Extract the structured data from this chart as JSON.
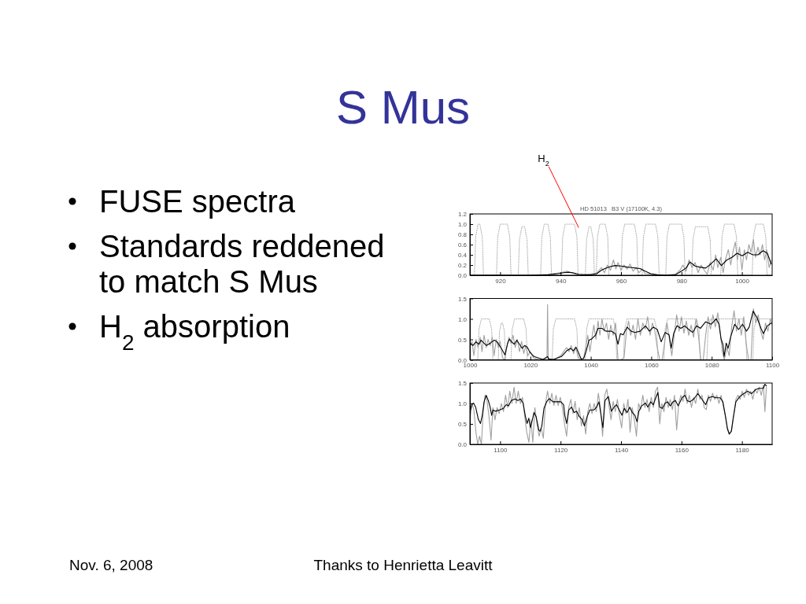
{
  "chart_data": [
    {
      "type": "other",
      "title": "S Mus",
      "annotations": [
        "FUSE spectra",
        "Standards reddened to match S Mus",
        "H$_{2}$ absorption",
        "Nov. 6, 2008",
        "Thanks to Henrietta Leavitt"
      ]
    },
    {
      "type": "line",
      "title": "HD 51013   B3 V (17100K, 4.3)",
      "xlim": [
        910,
        1010
      ],
      "ylim": [
        0,
        1.2
      ],
      "xticks": [
        920,
        940,
        960,
        980,
        1000
      ],
      "yticks": [
        {
          "value": 0,
          "label": "0.0"
        },
        {
          "value": 0.2,
          "label": "0.2"
        },
        {
          "value": 0.4,
          "label": "0.4"
        },
        {
          "value": 0.6,
          "label": "0.6"
        },
        {
          "value": 0.8,
          "label": "0.8"
        },
        {
          "value": 1,
          "label": "1.0"
        },
        {
          "value": 1.2,
          "label": "1.2"
        }
      ],
      "annotations": [
        {
          "text": "H$_{2}$",
          "x": 946,
          "y": 0.93
        }
      ],
      "series": [
        {
          "color": "#b4b4b4",
          "line_style": "dotted",
          "x": [
            910,
            911.5,
            911.9,
            912.7,
            913.3,
            914.1,
            914.5,
            918.8,
            919.2,
            920,
            922.4,
            923.2,
            923.6,
            926,
            926.4,
            927.2,
            928.1,
            928.9,
            929.3,
            933.4,
            933.8,
            934.6,
            935.8,
            936.6,
            937,
            940.3,
            940.7,
            941.5,
            944.6,
            945.4,
            945.8,
            948.2,
            948.6,
            949.4,
            950,
            950.8,
            951.2,
            951.8,
            952.2,
            953,
            954.8,
            955.6,
            956,
            960,
            960.4,
            961.2,
            964.4,
            965.2,
            965.6,
            967,
            967.4,
            968.2,
            971.4,
            972.2,
            972.6,
            974.8,
            975.2,
            976,
            980,
            980.8,
            981.2,
            983.4,
            983.8,
            984.6,
            988.7,
            989.5,
            989.9,
            993,
            993.4,
            994.2,
            997.4,
            998.2,
            998.6,
            1003.4,
            1003.8,
            1004.6,
            1007.1,
            1007.9,
            1008.3,
            1010
          ],
          "values": [
            0,
            0,
            0.75,
            1,
            1,
            0.75,
            0,
            0,
            0.75,
            1,
            1,
            0.75,
            0,
            0,
            0.7,
            0.95,
            0.95,
            0.7,
            0,
            0,
            0.75,
            1,
            1,
            0.75,
            0,
            0,
            0.75,
            1,
            1,
            0.75,
            0,
            0,
            0.7,
            0.95,
            0.95,
            0.7,
            0,
            0,
            0.75,
            1,
            1,
            0.75,
            0,
            0,
            0.75,
            1,
            1,
            0.75,
            0,
            0,
            0.75,
            1,
            1,
            0.75,
            0,
            0,
            0.75,
            1,
            1,
            0.75,
            0,
            0,
            0.7,
            0.95,
            0.95,
            0.7,
            0,
            0,
            0.75,
            1,
            1,
            0.75,
            0,
            0,
            0.75,
            1,
            1,
            0.75,
            0,
            0
          ]
        },
        {
          "color": "#a0a0a0",
          "x": [
            910,
            920,
            930,
            936,
            940,
            942,
            944,
            946,
            950,
            952,
            953.5,
            954.5,
            955.5,
            956.5,
            957.5,
            958.3,
            959,
            960,
            961,
            962,
            963,
            964,
            965,
            966,
            967,
            968,
            970,
            972,
            975,
            978,
            979.5,
            980.5,
            981.5,
            982.5,
            983.5,
            984.5,
            985.5,
            986.5,
            987.5,
            988.5,
            989.5,
            990.5,
            991.3,
            992,
            993,
            993.8,
            994.5,
            995.5,
            996.3,
            997,
            997.8,
            998.5,
            999.2,
            1000,
            1000.8,
            1001.5,
            1002.3,
            1003,
            1003.8,
            1004.5,
            1005.3,
            1006,
            1006.8,
            1007.5,
            1008.2,
            1009,
            1009.8
          ],
          "values": [
            0,
            0,
            0,
            0.02,
            0.05,
            0.08,
            0.04,
            0,
            0.02,
            0.05,
            0.15,
            0.05,
            0.2,
            0.1,
            0.3,
            0.12,
            0.25,
            0.1,
            0.2,
            0.12,
            0.22,
            0.08,
            0.15,
            0.05,
            0.12,
            0.03,
            0.02,
            0,
            0,
            0.02,
            0.1,
            0.2,
            0.08,
            0.3,
            0.15,
            0.25,
            0.05,
            0.2,
            0.1,
            0.02,
            0.25,
            0.1,
            0.4,
            0.15,
            0.35,
            0.05,
            0.3,
            0.5,
            0.2,
            0.45,
            0.65,
            0.3,
            0.55,
            0.1,
            0.5,
            0.3,
            0.6,
            0.45,
            0.7,
            0.35,
            0.55,
            0.4,
            0.6,
            0.3,
            0.5,
            0.15,
            0.3
          ]
        },
        {
          "color": "#000000",
          "x": [
            910,
            920,
            930,
            936,
            939,
            941,
            942.5,
            944,
            946,
            948,
            950,
            952,
            953.5,
            955,
            956.5,
            958,
            960,
            962,
            963.7,
            965,
            966.3,
            968,
            969.8,
            972,
            975,
            978,
            980,
            981.5,
            982.8,
            984.5,
            986,
            988,
            989.7,
            991.5,
            993.2,
            995,
            996.7,
            998.4,
            1000.1,
            1001.9,
            1003.6,
            1005.3,
            1007,
            1008.4,
            1009.7
          ],
          "values": [
            0,
            0,
            0,
            0.01,
            0.03,
            0.05,
            0.06,
            0.05,
            0.02,
            0.01,
            0.01,
            0.03,
            0.1,
            0.14,
            0.17,
            0.19,
            0.18,
            0.16,
            0.15,
            0.14,
            0.13,
            0.08,
            0.03,
            0.01,
            0,
            0.01,
            0.08,
            0.14,
            0.26,
            0.18,
            0.16,
            0.14,
            0.22,
            0.32,
            0.19,
            0.3,
            0.35,
            0.43,
            0.38,
            0.45,
            0.4,
            0.4,
            0.48,
            0.43,
            0.22
          ]
        }
      ]
    },
    {
      "type": "line",
      "xlim": [
        1000,
        1100
      ],
      "ylim": [
        0,
        1.5
      ],
      "xticks": [
        1000,
        1020,
        1040,
        1060,
        1080,
        1100
      ],
      "yticks": [
        {
          "value": 0,
          "label": "0.0"
        },
        {
          "value": 0.5,
          "label": "0.5"
        },
        {
          "value": 1,
          "label": "1.0"
        },
        {
          "value": 1.5,
          "label": "1.5"
        }
      ],
      "series": [
        {
          "color": "#b4b4b4",
          "line_style": "dotted",
          "x": [
            1000,
            1002.6,
            1003,
            1003.8,
            1006.4,
            1007.2,
            1007.6,
            1009.4,
            1009.8,
            1010.4,
            1010.8,
            1011.4,
            1011.8,
            1013.6,
            1014,
            1014.8,
            1017.8,
            1018.6,
            1019,
            1027.2,
            1027.6,
            1028.4,
            1034.6,
            1035.4,
            1035.8,
            1038.2,
            1038.6,
            1039.4,
            1047.4,
            1048.2,
            1048.6,
            1050.8,
            1051.2,
            1052,
            1061,
            1061.8,
            1062.2,
            1064.2,
            1064.6,
            1065.4,
            1075,
            1075.8,
            1076.2,
            1078.4,
            1078.8,
            1079.6,
            1090.4,
            1091.2,
            1091.6,
            1093.6,
            1094,
            1094.8,
            1100
          ],
          "values": [
            0,
            0,
            0.75,
            1,
            1,
            0.75,
            0,
            0,
            0.7,
            0.9,
            0.9,
            0.7,
            0,
            0,
            0.75,
            1,
            1,
            0.75,
            0,
            0,
            0.75,
            1,
            1,
            0.75,
            0,
            0,
            0.75,
            1,
            1,
            0.75,
            0,
            0,
            0.75,
            1,
            1,
            0.75,
            0,
            0,
            0.75,
            1,
            1,
            0.75,
            0,
            0,
            0.75,
            1,
            1,
            0.75,
            0,
            0,
            0.75,
            1,
            1
          ]
        },
        {
          "color": "#a0a0a0",
          "x": [
            1000,
            1000.7,
            1001.3,
            1002,
            1002.7,
            1003.4,
            1004,
            1004.7,
            1005.4,
            1006,
            1006.7,
            1007.4,
            1008,
            1008.7,
            1009.4,
            1010,
            1010.8,
            1011.5,
            1012.2,
            1012.9,
            1013.6,
            1014.3,
            1015,
            1015.7,
            1016.4,
            1017.1,
            1017.8,
            1018.5,
            1019.2,
            1020,
            1021,
            1022,
            1023,
            1024.5,
            1025.5,
            1025.7,
            1025.9,
            1027,
            1028.5,
            1030,
            1031,
            1032,
            1032.8,
            1033.5,
            1034.3,
            1035,
            1035.7,
            1036.5,
            1037.5,
            1038.3,
            1039,
            1039.7,
            1040.4,
            1041,
            1041.7,
            1042.4,
            1043,
            1043.7,
            1044.4,
            1045.2,
            1045.9,
            1046.6,
            1047.4,
            1048.2,
            1049,
            1050,
            1051,
            1051.8,
            1052.5,
            1053.2,
            1054,
            1054.8,
            1055.6,
            1056.4,
            1057.2,
            1058,
            1058.8,
            1059.6,
            1060.4,
            1061.2,
            1062,
            1062.8,
            1063.6,
            1064.4,
            1065.2,
            1066,
            1066.8,
            1067.6,
            1068.4,
            1069.2,
            1070,
            1070.8,
            1071.6,
            1072.4,
            1073.2,
            1074,
            1074.8,
            1075.6,
            1076.4,
            1077.2,
            1078,
            1078.8,
            1079.6,
            1080.4,
            1081.2,
            1082,
            1082.8,
            1083.5,
            1084.2,
            1085,
            1085.8,
            1086.6,
            1087.4,
            1088.2,
            1089,
            1089.8,
            1090.6,
            1091.4,
            1092.2,
            1093,
            1093.8,
            1094.6,
            1095.4,
            1096.2,
            1097,
            1097.8,
            1098.6,
            1099.4,
            1100
          ],
          "values": [
            0.3,
            0.45,
            0.1,
            0.5,
            0.3,
            0.55,
            0.2,
            0.6,
            0.3,
            0.5,
            0.35,
            0.55,
            0.1,
            0.5,
            0.3,
            0.45,
            0.05,
            0,
            0.3,
            0.55,
            0.4,
            0.6,
            0.3,
            0.5,
            0.2,
            0.45,
            0.15,
            0.35,
            0.1,
            0.2,
            0.05,
            0.02,
            0,
            0,
            0.05,
            1.35,
            0.05,
            0,
            0.03,
            0.1,
            0.2,
            0.3,
            0.2,
            0.35,
            0.15,
            0.3,
            0.1,
            0,
            0,
            0.3,
            0.6,
            0.2,
            0.55,
            0.85,
            0.5,
            0.95,
            0.6,
            1.0,
            0.7,
            0.9,
            0.5,
            0.85,
            0.6,
            0.9,
            0,
            0,
            0.05,
            0.7,
            0.95,
            0.6,
            0.85,
            0.5,
            1.0,
            0.6,
            0.9,
            0.75,
            1.05,
            0.6,
            0.9,
            0.7,
            0.3,
            0,
            0,
            0.4,
            0.9,
            0.5,
            0.1,
            0.6,
            1.1,
            0.7,
            1.05,
            0.65,
            0.95,
            0.6,
            0.85,
            0.55,
            1.0,
            0.6,
            0,
            0,
            0.6,
            1.05,
            0.75,
            1.1,
            0.8,
            1.15,
            0.7,
            0.2,
            0,
            0.3,
            0.1,
            0.8,
            1.2,
            0.7,
            1.0,
            0.6,
            1.05,
            0.4,
            0,
            0,
            1.25,
            0.9,
            1.1,
            0.7,
            0.5,
            0.9,
            0.7,
            1.0,
            0.85
          ]
        },
        {
          "color": "#000000",
          "x": [
            1000,
            1001,
            1002,
            1003,
            1003.7,
            1004.6,
            1005.5,
            1006.8,
            1008.1,
            1009,
            1010.4,
            1011.6,
            1012,
            1012.5,
            1013.1,
            1013.8,
            1014.7,
            1015.5,
            1016.4,
            1017.3,
            1018.1,
            1019,
            1019.9,
            1021.2,
            1022.5,
            1024.2,
            1025.7,
            1026,
            1027.7,
            1030.3,
            1032,
            1033.3,
            1034.2,
            1035.1,
            1035.9,
            1036.8,
            1037.7,
            1038.5,
            1039.4,
            1040.3,
            1041.6,
            1042.4,
            1043.7,
            1045,
            1046.8,
            1048.1,
            1049,
            1049.8,
            1050.7,
            1052,
            1053.3,
            1054.6,
            1056.3,
            1058.1,
            1059.4,
            1060.7,
            1062,
            1063.3,
            1064.6,
            1065.9,
            1066.6,
            1067.4,
            1068.5,
            1069.8,
            1071.1,
            1072.4,
            1073.7,
            1075,
            1076.3,
            1078,
            1079.8,
            1081.5,
            1082.4,
            1083.1,
            1083.7,
            1084.1,
            1084.8,
            1085.4,
            1086.3,
            1087.6,
            1088.9,
            1090.2,
            1091.5,
            1092.4,
            1093.7,
            1095,
            1096.3,
            1097.1,
            1098.4,
            1099.7
          ],
          "values": [
            0.41,
            0.35,
            0.44,
            0.38,
            0.48,
            0.41,
            0.35,
            0.41,
            0.48,
            0.44,
            0.28,
            0.12,
            0.25,
            0.41,
            0.51,
            0.44,
            0.38,
            0.48,
            0.38,
            0.28,
            0.35,
            0.31,
            0.18,
            0.08,
            0.05,
            0.01,
            0.08,
            0.02,
            0.01,
            0.08,
            0.22,
            0.28,
            0.22,
            0.31,
            0.18,
            0.02,
            0.04,
            0.22,
            0.48,
            0.51,
            0.61,
            0.77,
            0.77,
            0.7,
            0.7,
            0.64,
            0.38,
            0.64,
            0.61,
            0.8,
            0.7,
            0.67,
            0.7,
            0.83,
            0.7,
            0.8,
            0.74,
            0.44,
            0.67,
            0.61,
            0.28,
            0.64,
            0.83,
            0.77,
            0.83,
            0.74,
            0.67,
            0.83,
            0.77,
            0.93,
            0.87,
            1.0,
            0.87,
            0.51,
            0.38,
            0.08,
            0.41,
            0.28,
            0.57,
            0.87,
            0.74,
            0.87,
            0.7,
            0.8,
            1.19,
            1.03,
            0.77,
            0.64,
            0.83,
            0.9
          ]
        }
      ]
    },
    {
      "type": "line",
      "xlim": [
        1090,
        1190
      ],
      "ylim": [
        0,
        1.5
      ],
      "xticks": [
        1100,
        1120,
        1140,
        1160,
        1180
      ],
      "yticks": [
        {
          "value": 0,
          "label": "0.0"
        },
        {
          "value": 0.5,
          "label": "0.5"
        },
        {
          "value": 1,
          "label": "1.0"
        },
        {
          "value": 1.5,
          "label": "1.5"
        }
      ],
      "series": [
        {
          "color": "#a0a0a0",
          "x": [
            1090,
            1090.7,
            1091.3,
            1092,
            1092.6,
            1093.2,
            1093.8,
            1094.4,
            1095,
            1095.6,
            1096.3,
            1097,
            1097.6,
            1098.3,
            1099,
            1099.7,
            1100.4,
            1101.1,
            1101.8,
            1102.5,
            1103.2,
            1103.9,
            1104.6,
            1105.3,
            1106,
            1106.7,
            1107.4,
            1108.1,
            1108.8,
            1109.5,
            1110.2,
            1110.8,
            1111.5,
            1112.2,
            1112.9,
            1113.6,
            1114.3,
            1115,
            1115.7,
            1116.4,
            1117.1,
            1117.8,
            1118.5,
            1119.2,
            1119.9,
            1120.6,
            1121.3,
            1122,
            1122.7,
            1123.4,
            1124.1,
            1124.8,
            1125.5,
            1126.2,
            1126.9,
            1127.6,
            1128.3,
            1129,
            1129.7,
            1130.4,
            1131.1,
            1131.8,
            1132.5,
            1133.2,
            1133.9,
            1134.6,
            1135.3,
            1136,
            1136.7,
            1137.4,
            1138.1,
            1138.8,
            1139.5,
            1140.2,
            1140.9,
            1141.6,
            1142.3,
            1143,
            1143.7,
            1144.4,
            1145.1,
            1145.8,
            1146.5,
            1147.2,
            1147.9,
            1148.6,
            1149.3,
            1150,
            1150.7,
            1151.4,
            1152.1,
            1152.8,
            1153.5,
            1154.2,
            1154.9,
            1155.6,
            1156.3,
            1157,
            1157.7,
            1158.4,
            1159.1,
            1159.8,
            1160.5,
            1161.2,
            1161.9,
            1162.6,
            1163.3,
            1164,
            1164.7,
            1165.4,
            1166.1,
            1166.8,
            1167.5,
            1168.2,
            1168.9,
            1169.6,
            1170.3,
            1171,
            1171.7,
            1172.4,
            1173.1,
            1173.8,
            1174.5,
            1175.2,
            1175.9,
            1176.6,
            1177.3,
            1178,
            1178.7,
            1179.4,
            1180.1,
            1180.8,
            1181.5,
            1182.2,
            1182.9,
            1183.6,
            1184.3,
            1185,
            1185.7,
            1186.4,
            1187.1,
            1187.6,
            1188.1
          ],
          "values": [
            0.6,
            1.0,
            0.85,
            0.3,
            0,
            0.2,
            0,
            0.8,
            1.2,
            1.1,
            0.7,
            0.1,
            0.9,
            0.6,
            0.9,
            0.75,
            1.0,
            0.8,
            1.2,
            0.9,
            1.3,
            1.0,
            1.4,
            1.0,
            1.3,
            1.0,
            1.15,
            0.7,
            0.3,
            0.05,
            0.6,
            0.05,
            0.9,
            0.5,
            0.2,
            0.4,
            0.15,
            1.0,
            1.3,
            1.0,
            1.25,
            0.95,
            1.2,
            0.95,
            1.15,
            0.9,
            0.5,
            0.2,
            0.9,
            1.1,
            0.75,
            1.05,
            0.6,
            0.9,
            0.45,
            0.7,
            0.25,
            0.8,
            1.0,
            0.75,
            1.0,
            0.8,
            1.25,
            0.9,
            0.2,
            1.2,
            1.35,
            0.95,
            0.6,
            1.05,
            0.8,
            1.1,
            0.7,
            0.4,
            1.0,
            0.75,
            1.1,
            0.3,
            0.9,
            0.6,
            0.2,
            1.0,
            0.85,
            1.2,
            0.9,
            1.1,
            0.8,
            1.15,
            0.9,
            1.3,
            1.4,
            0.5,
            1.0,
            0.8,
            1.15,
            0.9,
            1.1,
            0.85,
            1.2,
            0.35,
            1.0,
            1.2,
            1.05,
            1.35,
            1.0,
            1.2,
            0.9,
            1.15,
            1.0,
            1.35,
            1.1,
            1.2,
            0.9,
            0.85,
            1.2,
            1.05,
            1.25,
            1.1,
            1.2,
            1.0,
            1.2,
            0.95,
            0.7,
            0.4,
            0.25,
            0.35,
            0.7,
            1.1,
            1.2,
            1.1,
            1.3,
            1.15,
            1.35,
            1.2,
            1.3,
            1.1,
            1.35,
            1.25,
            1.4,
            1.2,
            1.45,
            0.8,
            1.4
          ]
        },
        {
          "color": "#000000",
          "x": [
            1090,
            1090.6,
            1091.2,
            1091.9,
            1092.8,
            1093.5,
            1094.1,
            1094.7,
            1095.4,
            1096.1,
            1096.7,
            1097.2,
            1097.6,
            1098.5,
            1099.8,
            1101.1,
            1102,
            1102.8,
            1103.7,
            1105,
            1105.9,
            1106.7,
            1107.6,
            1108.3,
            1108.9,
            1109.5,
            1110,
            1110.6,
            1111.2,
            1111.9,
            1112.8,
            1113.2,
            1113.8,
            1114.5,
            1115.4,
            1116.2,
            1117.5,
            1118.8,
            1120.1,
            1121,
            1121.4,
            1122,
            1122.7,
            1123.6,
            1124.5,
            1125.3,
            1126.2,
            1127.1,
            1127.9,
            1128.8,
            1129.7,
            1131,
            1131.9,
            1132.7,
            1133.6,
            1134,
            1134.7,
            1135.8,
            1136.8,
            1137.7,
            1138.5,
            1139.4,
            1140.3,
            1141.1,
            1142,
            1142.9,
            1143.7,
            1144.6,
            1145.3,
            1145.9,
            1146.8,
            1148.1,
            1148.9,
            1149.8,
            1150.7,
            1151.5,
            1152.2,
            1152.8,
            1153.7,
            1154.6,
            1155.4,
            1156.3,
            1157.2,
            1158,
            1158.9,
            1160.2,
            1161.1,
            1161.9,
            1162.8,
            1164.1,
            1165.4,
            1166.7,
            1168,
            1168.9,
            1170.2,
            1171.5,
            1172.8,
            1173.7,
            1174.5,
            1175.2,
            1175.8,
            1176.5,
            1177.1,
            1178,
            1179.3,
            1180.6,
            1181.9,
            1183.2,
            1184.5,
            1185.8,
            1187.1,
            1187.6,
            1188.1
          ],
          "values": [
            0.78,
            0.97,
            1.01,
            0.91,
            0.61,
            0.51,
            0.71,
            1.04,
            1.2,
            1.07,
            0.91,
            0.71,
            0.84,
            0.81,
            0.84,
            0.88,
            0.97,
            0.94,
            1.07,
            1.11,
            1.07,
            1.11,
            1.01,
            0.71,
            0.51,
            0.64,
            0.41,
            0.58,
            0.78,
            0.68,
            0.35,
            0.32,
            0.45,
            0.88,
            1.04,
            1.12,
            1.04,
            1.04,
            1.04,
            0.97,
            0.71,
            0.51,
            0.84,
            0.91,
            0.78,
            0.81,
            0.68,
            0.61,
            0.45,
            0.68,
            0.84,
            0.84,
            0.91,
            1.04,
            0.61,
            0.41,
            1.07,
            1.17,
            0.81,
            0.91,
            0.97,
            0.84,
            0.71,
            0.88,
            0.78,
            0.91,
            0.78,
            0.71,
            0.55,
            0.81,
            0.94,
            1.01,
            0.91,
            1.04,
            0.97,
            1.14,
            1.27,
            0.91,
            0.88,
            1.01,
            1.04,
            0.94,
            1.04,
            1.07,
            0.94,
            1.14,
            1.2,
            1.07,
            1.04,
            1.11,
            1.24,
            1.11,
            0.97,
            1.14,
            1.17,
            1.14,
            1.14,
            1.04,
            0.71,
            0.38,
            0.25,
            0.32,
            0.64,
            1.04,
            1.17,
            1.24,
            1.3,
            1.24,
            1.34,
            1.37,
            1.37,
            1.47,
            1.43
          ]
        }
      ]
    }
  ]
}
